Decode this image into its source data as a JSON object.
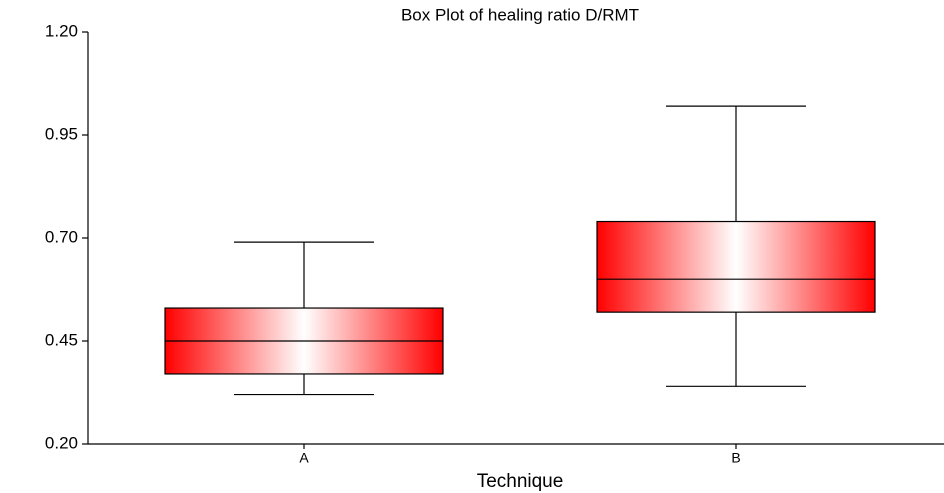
{
  "chart_data": {
    "type": "box",
    "title": "Box Plot of healing ratio D/RMT",
    "x_label": "Technique",
    "categories": [
      "A",
      "B"
    ],
    "boxes": [
      {
        "min": 0.32,
        "q1": 0.37,
        "median": 0.45,
        "q3": 0.53,
        "max": 0.69
      },
      {
        "min": 0.34,
        "q1": 0.52,
        "median": 0.6,
        "q3": 0.74,
        "max": 1.02
      }
    ],
    "color": "#ff0000",
    "ylim": [
      0.2,
      1.2
    ],
    "yticks": [
      {
        "value": 0.2,
        "label": "0.20"
      },
      {
        "value": 0.45,
        "label": "0.45"
      },
      {
        "value": 0.7,
        "label": "0.70"
      },
      {
        "value": 0.95,
        "label": "0.95"
      },
      {
        "value": 1.2,
        "label": "1.20"
      }
    ]
  }
}
